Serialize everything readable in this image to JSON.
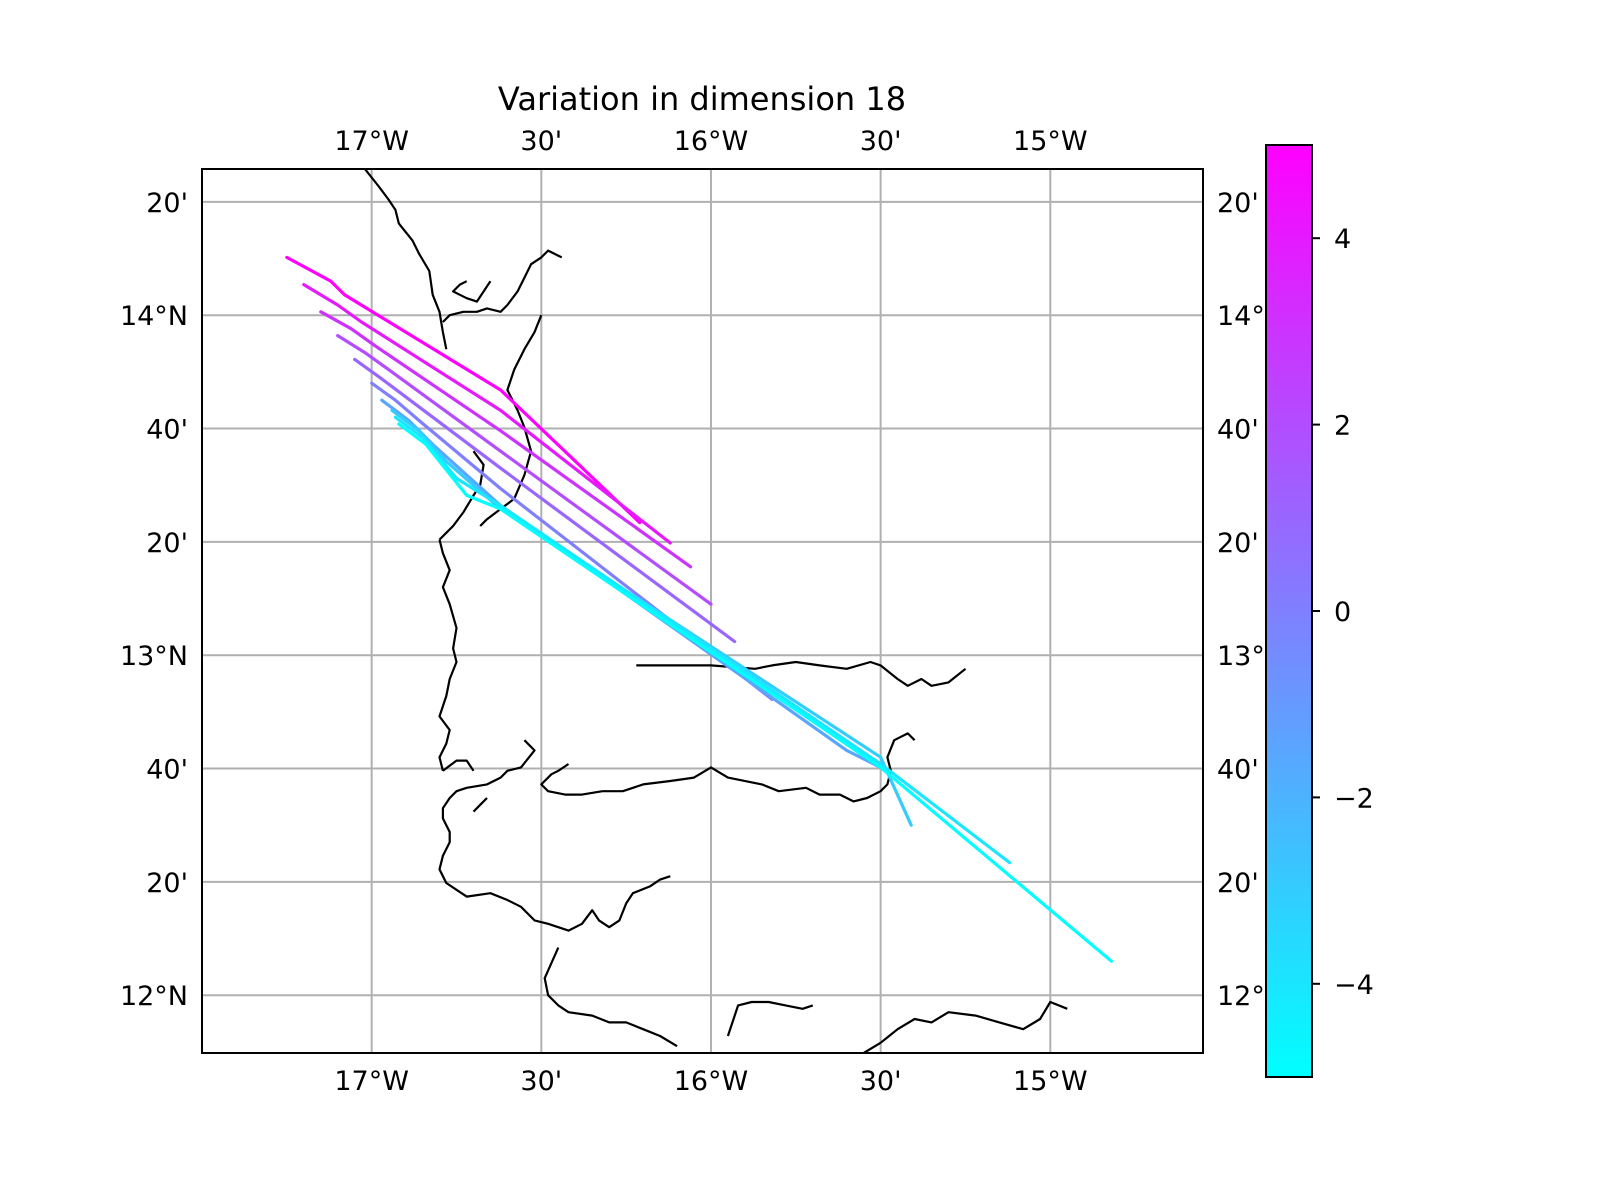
{
  "title": "Variation in dimension 18",
  "map": {
    "lon_range": [
      -17.5,
      -14.55
    ],
    "lat_range": [
      11.83,
      14.43
    ],
    "grid": true,
    "x_ticks": [
      {
        "lon": -17.0,
        "label": "17°W"
      },
      {
        "lon": -16.5,
        "label": "30'"
      },
      {
        "lon": -16.0,
        "label": "16°W"
      },
      {
        "lon": -15.5,
        "label": "30'"
      },
      {
        "lon": -15.0,
        "label": "15°W"
      }
    ],
    "y_ticks_left": [
      {
        "lat": 14.3333,
        "label": "20'"
      },
      {
        "lat": 14.0,
        "label": "14°N"
      },
      {
        "lat": 13.6667,
        "label": "40'"
      },
      {
        "lat": 13.3333,
        "label": "20'"
      },
      {
        "lat": 13.0,
        "label": "13°N"
      },
      {
        "lat": 12.6667,
        "label": "40'"
      },
      {
        "lat": 12.3333,
        "label": "20'"
      },
      {
        "lat": 12.0,
        "label": "12°N"
      }
    ],
    "y_ticks_right": [
      {
        "lat": 14.3333,
        "label": "20'"
      },
      {
        "lat": 14.0,
        "label": "14°"
      },
      {
        "lat": 13.6667,
        "label": "40'"
      },
      {
        "lat": 13.3333,
        "label": "20'"
      },
      {
        "lat": 13.0,
        "label": "13°"
      },
      {
        "lat": 12.6667,
        "label": "40'"
      },
      {
        "lat": 12.3333,
        "label": "20'"
      },
      {
        "lat": 12.0,
        "label": "12°"
      }
    ]
  },
  "colorbar": {
    "range": [
      -5,
      5
    ],
    "colors": [
      "#00ffff",
      "#ff00ff"
    ],
    "ticks": [
      {
        "value": 4,
        "label": "4"
      },
      {
        "value": 2,
        "label": "2"
      },
      {
        "value": 0,
        "label": "0"
      },
      {
        "value": -2,
        "label": "−2"
      },
      {
        "value": -4,
        "label": "−4"
      }
    ]
  },
  "chart_data": {
    "type": "line",
    "title": "Variation in dimension 18",
    "xlabel": "",
    "ylabel": "",
    "xlim": [
      -17.5,
      -14.55
    ],
    "ylim": [
      11.83,
      14.43
    ],
    "series": [
      {
        "value": 5.0,
        "points": [
          [
            -17.25,
            14.17
          ],
          [
            -17.12,
            14.1
          ],
          [
            -17.08,
            14.06
          ],
          [
            -16.62,
            13.78
          ],
          [
            -16.21,
            13.39
          ]
        ]
      },
      {
        "value": 4.0,
        "points": [
          [
            -17.2,
            14.09
          ],
          [
            -17.1,
            14.03
          ],
          [
            -17.03,
            13.98
          ],
          [
            -16.62,
            13.72
          ],
          [
            -16.12,
            13.33
          ]
        ]
      },
      {
        "value": 3.0,
        "points": [
          [
            -17.15,
            14.01
          ],
          [
            -17.06,
            13.96
          ],
          [
            -16.99,
            13.91
          ],
          [
            -16.62,
            13.66
          ],
          [
            -16.06,
            13.26
          ]
        ]
      },
      {
        "value": 2.0,
        "points": [
          [
            -17.1,
            13.94
          ],
          [
            -17.02,
            13.89
          ],
          [
            -16.95,
            13.84
          ],
          [
            -16.62,
            13.6
          ],
          [
            -16.0,
            13.15
          ]
        ]
      },
      {
        "value": 1.0,
        "points": [
          [
            -17.05,
            13.87
          ],
          [
            -16.98,
            13.82
          ],
          [
            -16.9,
            13.76
          ],
          [
            -16.62,
            13.55
          ],
          [
            -15.93,
            13.04
          ]
        ]
      },
      {
        "value": 0.0,
        "points": [
          [
            -17.0,
            13.8
          ],
          [
            -16.93,
            13.75
          ],
          [
            -16.86,
            13.69
          ],
          [
            -16.62,
            13.49
          ],
          [
            -15.82,
            12.87
          ]
        ]
      },
      {
        "value": -1.5,
        "points": [
          [
            -16.97,
            13.75
          ],
          [
            -16.89,
            13.69
          ],
          [
            -16.82,
            13.62
          ],
          [
            -16.62,
            13.44
          ],
          [
            -15.6,
            12.72
          ],
          [
            -15.5,
            12.67
          ]
        ]
      },
      {
        "value": -3.0,
        "points": [
          [
            -16.94,
            13.72
          ],
          [
            -16.86,
            13.66
          ],
          [
            -16.78,
            13.57
          ],
          [
            -16.62,
            13.43
          ],
          [
            -15.5,
            12.7
          ],
          [
            -15.41,
            12.5
          ]
        ]
      },
      {
        "value": -4.0,
        "points": [
          [
            -16.93,
            13.7
          ],
          [
            -16.85,
            13.64
          ],
          [
            -16.75,
            13.52
          ],
          [
            -16.62,
            13.44
          ],
          [
            -15.5,
            12.68
          ],
          [
            -15.12,
            12.39
          ]
        ]
      },
      {
        "value": -5.0,
        "points": [
          [
            -16.92,
            13.68
          ],
          [
            -16.84,
            13.62
          ],
          [
            -16.72,
            13.47
          ],
          [
            -16.62,
            13.43
          ],
          [
            -15.5,
            12.67
          ],
          [
            -14.82,
            12.1
          ]
        ]
      }
    ]
  },
  "coastline": [
    [
      [
        -17.02,
        14.43
      ],
      [
        -16.98,
        14.38
      ],
      [
        -16.95,
        14.34
      ],
      [
        -16.93,
        14.31
      ],
      [
        -16.92,
        14.27
      ],
      [
        -16.88,
        14.22
      ],
      [
        -16.86,
        14.18
      ],
      [
        -16.83,
        14.13
      ],
      [
        -16.82,
        14.06
      ],
      [
        -16.8,
        14.01
      ],
      [
        -16.79,
        13.95
      ],
      [
        -16.78,
        13.9
      ]
    ],
    [
      [
        -16.79,
        13.98
      ],
      [
        -16.77,
        14.0
      ],
      [
        -16.73,
        14.01
      ],
      [
        -16.69,
        14.01
      ],
      [
        -16.66,
        14.02
      ],
      [
        -16.62,
        14.01
      ],
      [
        -16.6,
        14.03
      ],
      [
        -16.57,
        14.07
      ],
      [
        -16.55,
        14.11
      ],
      [
        -16.53,
        14.15
      ],
      [
        -16.5,
        14.17
      ],
      [
        -16.48,
        14.19
      ],
      [
        -16.44,
        14.17
      ]
    ],
    [
      [
        -16.65,
        14.1
      ],
      [
        -16.69,
        14.04
      ],
      [
        -16.72,
        14.05
      ],
      [
        -16.74,
        14.06
      ],
      [
        -16.76,
        14.07
      ],
      [
        -16.74,
        14.09
      ],
      [
        -16.72,
        14.1
      ]
    ],
    [
      [
        -16.5,
        14.0
      ],
      [
        -16.52,
        13.95
      ],
      [
        -16.55,
        13.9
      ],
      [
        -16.58,
        13.84
      ],
      [
        -16.6,
        13.78
      ],
      [
        -16.57,
        13.72
      ],
      [
        -16.55,
        13.67
      ],
      [
        -16.53,
        13.6
      ],
      [
        -16.55,
        13.53
      ],
      [
        -16.58,
        13.46
      ],
      [
        -16.62,
        13.43
      ],
      [
        -16.66,
        13.4
      ],
      [
        -16.68,
        13.38
      ]
    ],
    [
      [
        -16.7,
        13.6
      ],
      [
        -16.67,
        13.56
      ],
      [
        -16.68,
        13.5
      ],
      [
        -16.7,
        13.47
      ],
      [
        -16.73,
        13.42
      ],
      [
        -16.76,
        13.38
      ],
      [
        -16.78,
        13.36
      ],
      [
        -16.8,
        13.34
      ]
    ],
    [
      [
        -16.8,
        13.34
      ],
      [
        -16.79,
        13.3
      ],
      [
        -16.77,
        13.25
      ],
      [
        -16.79,
        13.2
      ],
      [
        -16.77,
        13.15
      ],
      [
        -16.75,
        13.08
      ],
      [
        -16.76,
        13.02
      ],
      [
        -16.75,
        12.98
      ],
      [
        -16.77,
        12.93
      ],
      [
        -16.78,
        12.88
      ],
      [
        -16.8,
        12.82
      ],
      [
        -16.77,
        12.78
      ],
      [
        -16.78,
        12.74
      ],
      [
        -16.8,
        12.7
      ],
      [
        -16.79,
        12.66
      ]
    ],
    [
      [
        -16.79,
        12.66
      ],
      [
        -16.75,
        12.69
      ],
      [
        -16.72,
        12.69
      ],
      [
        -16.7,
        12.66
      ]
    ],
    [
      [
        -16.55,
        12.75
      ],
      [
        -16.52,
        12.72
      ],
      [
        -16.56,
        12.67
      ],
      [
        -16.6,
        12.66
      ],
      [
        -16.62,
        12.64
      ],
      [
        -16.66,
        12.62
      ],
      [
        -16.72,
        12.61
      ],
      [
        -16.75,
        12.6
      ],
      [
        -16.77,
        12.58
      ],
      [
        -16.79,
        12.55
      ],
      [
        -16.79,
        12.52
      ],
      [
        -16.77,
        12.48
      ],
      [
        -16.77,
        12.45
      ],
      [
        -16.79,
        12.41
      ],
      [
        -16.8,
        12.37
      ],
      [
        -16.78,
        12.33
      ],
      [
        -16.75,
        12.31
      ],
      [
        -16.72,
        12.29
      ],
      [
        -16.65,
        12.3
      ],
      [
        -16.6,
        12.28
      ],
      [
        -16.56,
        12.26
      ],
      [
        -16.52,
        12.22
      ],
      [
        -16.48,
        12.21
      ],
      [
        -16.45,
        12.2
      ],
      [
        -16.42,
        12.19
      ],
      [
        -16.38,
        12.21
      ],
      [
        -16.35,
        12.25
      ],
      [
        -16.33,
        12.22
      ],
      [
        -16.3,
        12.2
      ],
      [
        -16.27,
        12.22
      ],
      [
        -16.25,
        12.27
      ],
      [
        -16.23,
        12.3
      ],
      [
        -16.18,
        12.32
      ],
      [
        -16.15,
        12.34
      ],
      [
        -16.12,
        12.35
      ]
    ],
    [
      [
        -16.42,
        12.68
      ],
      [
        -16.45,
        12.66
      ],
      [
        -16.47,
        12.65
      ],
      [
        -16.5,
        12.62
      ],
      [
        -16.48,
        12.6
      ],
      [
        -16.43,
        12.59
      ],
      [
        -16.38,
        12.59
      ],
      [
        -16.32,
        12.6
      ],
      [
        -16.26,
        12.6
      ],
      [
        -16.2,
        12.62
      ],
      [
        -16.12,
        12.63
      ],
      [
        -16.05,
        12.64
      ],
      [
        -16.0,
        12.67
      ],
      [
        -15.95,
        12.64
      ],
      [
        -15.85,
        12.62
      ],
      [
        -15.8,
        12.6
      ],
      [
        -15.72,
        12.61
      ],
      [
        -15.68,
        12.59
      ],
      [
        -15.62,
        12.59
      ],
      [
        -15.58,
        12.57
      ],
      [
        -15.54,
        12.58
      ],
      [
        -15.5,
        12.6
      ],
      [
        -15.48,
        12.62
      ],
      [
        -15.47,
        12.66
      ],
      [
        -15.48,
        12.7
      ],
      [
        -15.46,
        12.75
      ],
      [
        -15.42,
        12.77
      ],
      [
        -15.4,
        12.75
      ]
    ],
    [
      [
        -16.22,
        12.97
      ],
      [
        -16.0,
        12.97
      ],
      [
        -15.87,
        12.96
      ],
      [
        -15.82,
        12.97
      ],
      [
        -15.75,
        12.98
      ],
      [
        -15.68,
        12.97
      ],
      [
        -15.6,
        12.96
      ],
      [
        -15.53,
        12.98
      ],
      [
        -15.5,
        12.97
      ],
      [
        -15.45,
        12.93
      ],
      [
        -15.42,
        12.91
      ],
      [
        -15.38,
        12.93
      ],
      [
        -15.35,
        12.91
      ],
      [
        -15.3,
        12.92
      ],
      [
        -15.25,
        12.96
      ]
    ],
    [
      [
        -16.7,
        12.54
      ],
      [
        -16.68,
        12.56
      ],
      [
        -16.66,
        12.58
      ]
    ],
    [
      [
        -16.45,
        12.14
      ],
      [
        -16.49,
        12.05
      ],
      [
        -16.48,
        12.0
      ],
      [
        -16.45,
        11.97
      ],
      [
        -16.42,
        11.95
      ],
      [
        -16.35,
        11.94
      ],
      [
        -16.3,
        11.92
      ],
      [
        -16.25,
        11.92
      ],
      [
        -16.2,
        11.9
      ],
      [
        -16.15,
        11.88
      ],
      [
        -16.1,
        11.85
      ]
    ],
    [
      [
        -15.95,
        11.88
      ],
      [
        -15.92,
        11.97
      ],
      [
        -15.88,
        11.98
      ],
      [
        -15.83,
        11.98
      ],
      [
        -15.78,
        11.97
      ],
      [
        -15.73,
        11.96
      ],
      [
        -15.7,
        11.97
      ]
    ],
    [
      [
        -15.55,
        11.83
      ],
      [
        -15.5,
        11.86
      ],
      [
        -15.45,
        11.9
      ],
      [
        -15.4,
        11.93
      ],
      [
        -15.35,
        11.92
      ],
      [
        -15.3,
        11.95
      ],
      [
        -15.22,
        11.94
      ],
      [
        -15.15,
        11.92
      ],
      [
        -15.08,
        11.9
      ],
      [
        -15.03,
        11.93
      ],
      [
        -15.0,
        11.98
      ],
      [
        -14.95,
        11.96
      ]
    ]
  ]
}
